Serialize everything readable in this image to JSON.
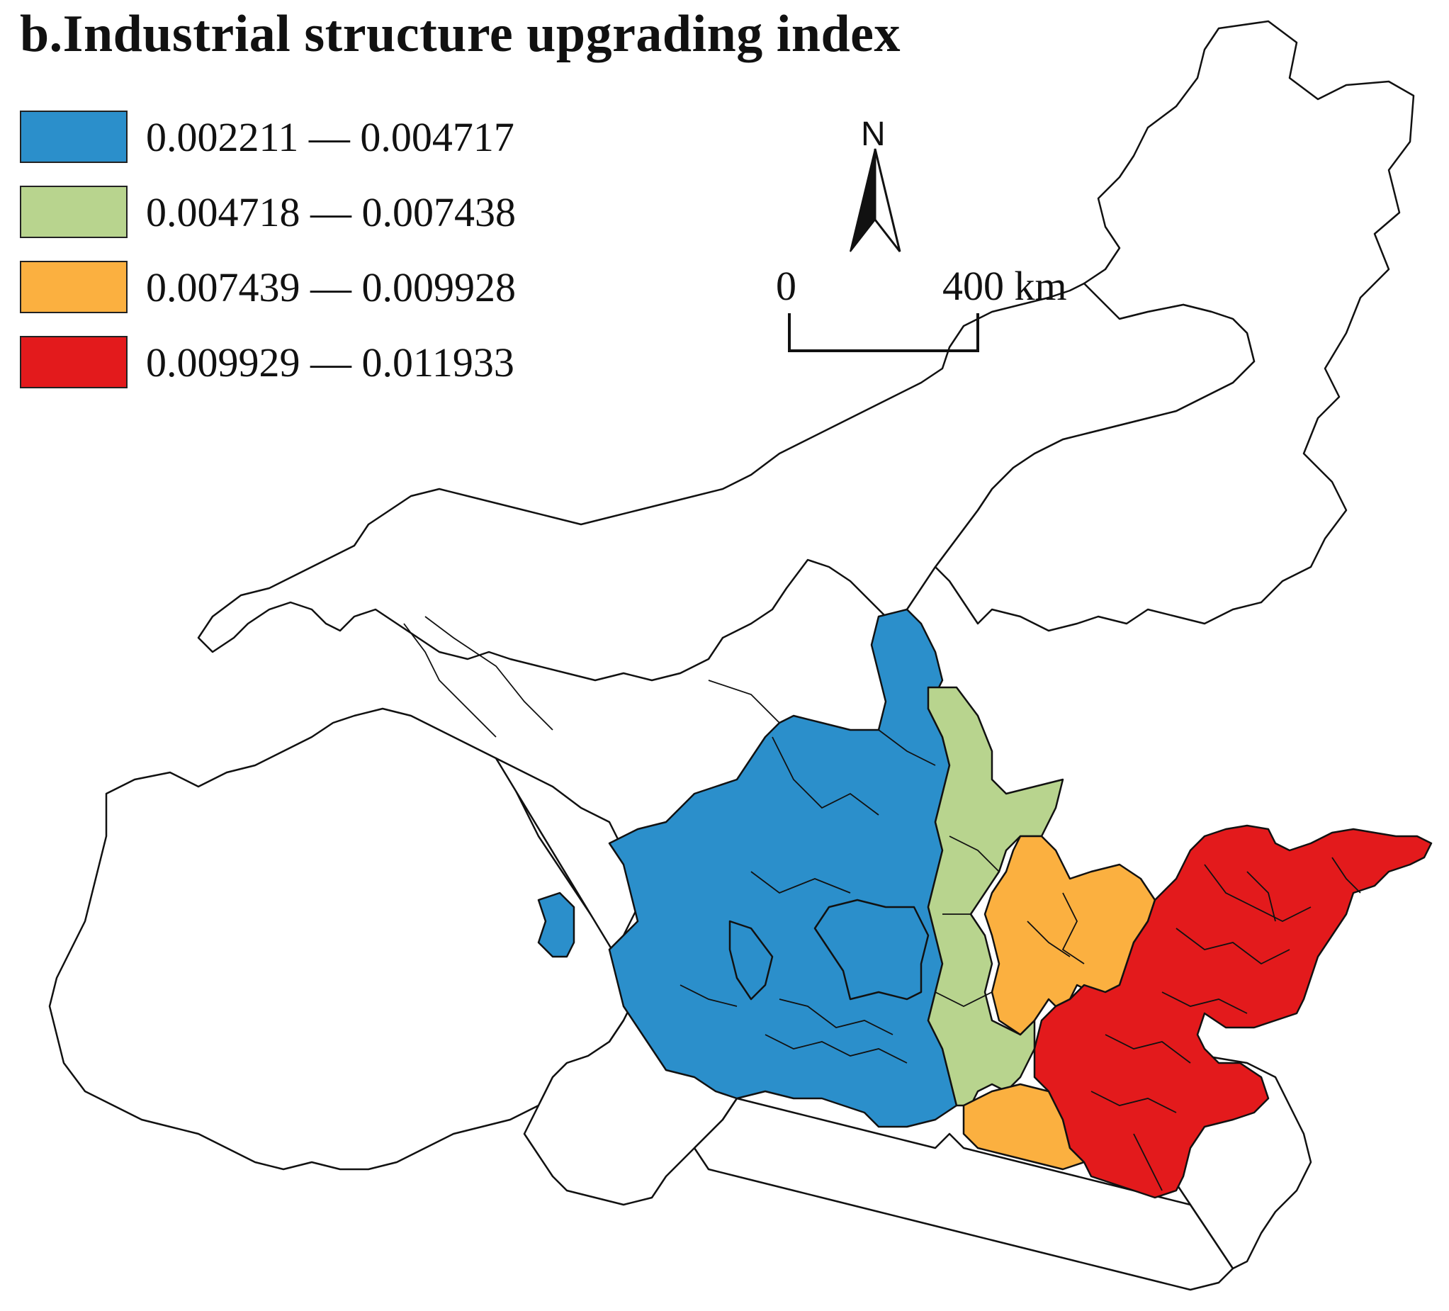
{
  "title": "b.Industrial structure upgrading index",
  "legend": [
    {
      "label": "0.002211 — 0.004717",
      "color": "#2b8fcb"
    },
    {
      "label": "0.004718 — 0.007438",
      "color": "#b8d48e"
    },
    {
      "label": "0.007439 — 0.009928",
      "color": "#fbb040"
    },
    {
      "label": "0.009929 — 0.011933",
      "color": "#e31a1c"
    }
  ],
  "north_arrow": {
    "letter": "N"
  },
  "scale_bar": {
    "start": "0",
    "end": "400 km"
  },
  "colors": {
    "outline": "#111111",
    "empty": "#ffffff"
  }
}
